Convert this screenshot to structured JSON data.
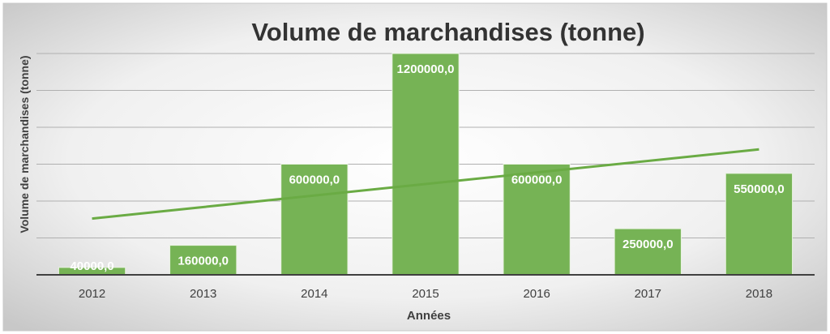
{
  "chart_data": {
    "type": "bar",
    "title": "Volume de marchandises (tonne)",
    "xlabel": "Années",
    "ylabel": "Volume de marchandises (tonne)",
    "categories": [
      "2012",
      "2013",
      "2014",
      "2015",
      "2016",
      "2017",
      "2018"
    ],
    "values": [
      40000,
      160000,
      600000,
      1200000,
      600000,
      250000,
      550000
    ],
    "data_labels": [
      "40000,0",
      "160000,0",
      "600000,0",
      "1200000,0",
      "600000,0",
      "250000,0",
      "550000,0"
    ],
    "ylim": [
      0,
      1200000
    ],
    "y_gridline_step": 200000,
    "y_tick_labels_shown": false,
    "trendline": {
      "type": "linear",
      "start": 305000,
      "end": 680000
    },
    "grid": true,
    "legend": "none",
    "colors": {
      "bar": "#76b355",
      "bar_border": "#e8f2e0",
      "trendline": "#6aab44",
      "gridline": "#b0b0b0",
      "axis": "#404040"
    }
  }
}
